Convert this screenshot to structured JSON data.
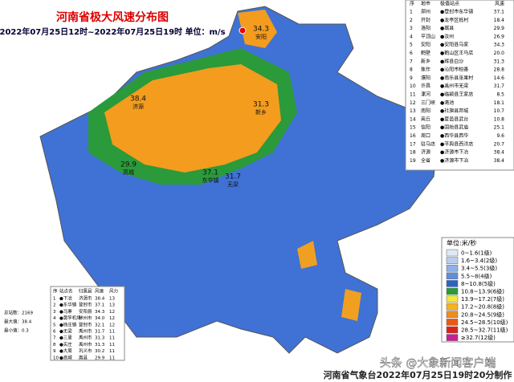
{
  "header": {
    "title": "河南省极大风速分布图",
    "subtitle": "2022年07月25日12时~2022年07月25日19时 单位：m/s"
  },
  "city_table": {
    "columns": [
      "序",
      "地市",
      "极值站点",
      "风速"
    ],
    "rows": [
      [
        "1",
        "郑州",
        "●登封市东华镇",
        "37.1"
      ],
      [
        "2",
        "开封",
        "●龙亭区抵村",
        "18.4"
      ],
      [
        "3",
        "洛阳",
        "●嵩县",
        "29.9"
      ],
      [
        "4",
        "平顶山",
        "●汝州",
        "26.9"
      ],
      [
        "5",
        "安阳",
        "●安阳县马家",
        "34.3"
      ],
      [
        "6",
        "鹤壁",
        "●鹤山区王马店",
        "20.0"
      ],
      [
        "7",
        "新乡",
        "●辉县白沙",
        "31.3"
      ],
      [
        "8",
        "焦作",
        "●沁阳市柏香",
        "28.8"
      ],
      [
        "9",
        "濮阳",
        "●南乐县张果村",
        "14.6"
      ],
      [
        "10",
        "许昌",
        "●禹州市无梁",
        "31.7"
      ],
      [
        "11",
        "漯河",
        "●临颍县王家店",
        "8.5"
      ],
      [
        "12",
        "三门峡",
        "●渑池",
        "18.1"
      ],
      [
        "13",
        "南阳",
        "●社旗县邦城",
        "10.7"
      ],
      [
        "14",
        "商丘",
        "●夏邑县武台",
        "10.8"
      ],
      [
        "15",
        "信阳",
        "●固始县武庙",
        "25.1"
      ],
      [
        "16",
        "周口",
        "●西华县西华",
        "9.6"
      ],
      [
        "17",
        "驻马店",
        "●平舆县西洋店",
        "20.7"
      ],
      [
        "18",
        "济源",
        "●济源市下冶",
        "38.4"
      ],
      [
        "19",
        "全省",
        "●济源市下冶",
        "38.4"
      ]
    ]
  },
  "station_table": {
    "columns": [
      "序",
      "站点名",
      "归属县",
      "风速",
      "风力"
    ],
    "rows": [
      [
        "1",
        "●下冶",
        "济源市",
        "38.4",
        "13"
      ],
      [
        "2",
        "●东华镇",
        "登封市",
        "37.1",
        "13"
      ],
      [
        "3",
        "●马寨",
        "安阳县",
        "34.3",
        "12"
      ],
      [
        "4",
        "●黄竽机场",
        "林州市",
        "34.0",
        "12"
      ],
      [
        "5",
        "●徐庄镇",
        "登封市",
        "32.1",
        "12"
      ],
      [
        "6",
        "●无梁",
        "禹州市",
        "31.7",
        "11"
      ],
      [
        "7",
        "●三里",
        "禹州市",
        "31.3",
        "11"
      ],
      [
        "8",
        "●买庄",
        "禹州市",
        "31.3",
        "11"
      ],
      [
        "9",
        "●大周",
        "巩义市",
        "30.2",
        "11"
      ],
      [
        "10",
        "●高城",
        "嵩县",
        "29.9",
        "11"
      ]
    ]
  },
  "stats": [
    "总站数：2169",
    "最大值：38.4",
    "最小值：0.3"
  ],
  "map_labels": [
    {
      "value": "34.3",
      "place": "安阳"
    },
    {
      "value": "38.4",
      "place": "济源"
    },
    {
      "value": "31.3",
      "place": "新乡"
    },
    {
      "value": "37.1",
      "place": "东华镇"
    },
    {
      "value": "31.7",
      "place": "无梁"
    },
    {
      "value": "29.9",
      "place": "高城"
    }
  ],
  "legend": {
    "title": "单位:米/秒",
    "items": [
      {
        "label": "0~1.6(1级)",
        "color": "#dfe9f7"
      },
      {
        "label": "1.6~3.4(2级)",
        "color": "#b9cdf0"
      },
      {
        "label": "3.4~5.5(3级)",
        "color": "#8fb0e8"
      },
      {
        "label": "5.5~8(4级)",
        "color": "#5f8edc"
      },
      {
        "label": "8~10.8(5级)",
        "color": "#2e62c4"
      },
      {
        "label": "10.8~13.9(6级)",
        "color": "#2a9a3a"
      },
      {
        "label": "13.9~17.2(7级)",
        "color": "#f5e63c"
      },
      {
        "label": "17.2~20.8(8级)",
        "color": "#f7b21e"
      },
      {
        "label": "20.8~24.5(9级)",
        "color": "#f08c1a"
      },
      {
        "label": "24.5~28.5(10级)",
        "color": "#e85a14"
      },
      {
        "label": "28.5~32.7(11级)",
        "color": "#d8231a"
      },
      {
        "label": "≥32.7(12级)",
        "color": "#c81e96"
      }
    ]
  },
  "footer": "河南省气象台2022年07月25日19时20分制作",
  "watermark": "头条 @大象新闻客户端"
}
